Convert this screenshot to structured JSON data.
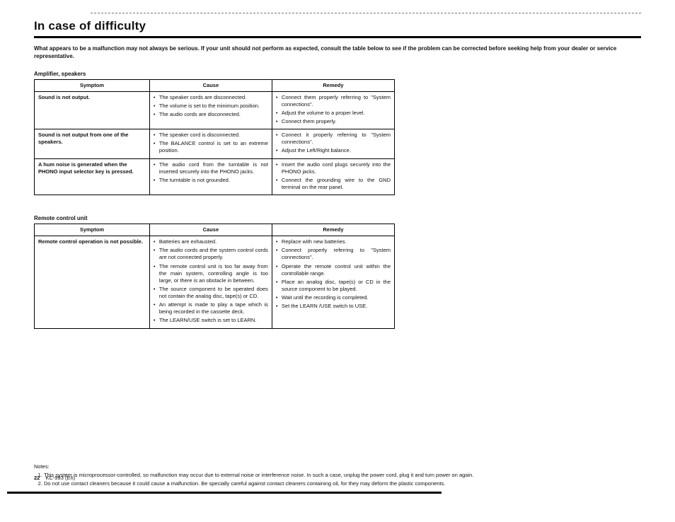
{
  "title": "In case of difficulty",
  "intro": "What appears to be a malfunction may not always be serious. If your unit should not perform as expected, consult the table below to see if the problem can be corrected before seeking help from your dealer or service representative.",
  "section1": {
    "label": "Amplifier, speakers",
    "headers": [
      "Symptom",
      "Cause",
      "Remedy"
    ],
    "rows": [
      {
        "symptom": "Sound is not output.",
        "causes": [
          "The speaker cords are disconnected.",
          "The volume is set to the minimum position.",
          "The audio cords are disconnected."
        ],
        "remedies": [
          "Connect them properly referring to \"System connections\".",
          "Adjust the volume to a proper level.",
          "Connect them properly."
        ]
      },
      {
        "symptom": "Sound is not output from one of the speakers.",
        "causes": [
          "The speaker cord is disconnected.",
          "The BALANCE control is set to an extreme position."
        ],
        "remedies": [
          "Connect it properly referring to \"System connections\".",
          "Adjust the Left/Right balance."
        ]
      },
      {
        "symptom": "A hum noise is generated when the PHONO input selector key is pressed.",
        "causes": [
          "The audio cord from the turntable is not inserted securely into the PHONO jacks.",
          "The turntable is not grounded."
        ],
        "remedies": [
          "Insert the audio cord plugs securely into the PHONO jacks.",
          "Connect the grounding wire to the GND terminal on the rear panel."
        ]
      }
    ]
  },
  "section2": {
    "label": "Remote control unit",
    "headers": [
      "Symptom",
      "Cause",
      "Remedy"
    ],
    "rows": [
      {
        "symptom": "Remote control operation is not possible.",
        "causes": [
          "Batteries are exhausted.",
          "The audio cords and the system control cords are not connected properly.",
          "The remote control unit is too far away from the main system, controlling angle is too large, or there is an obstacle in between.",
          "The source component to be operated does not contain the analog disc, tape(s) or CD.",
          "An attempt is made to play a tape which is being recorded in the cassette deck.",
          "The LEARN/USE switch is set to LEARN."
        ],
        "remedies": [
          "Replace with new batteries.",
          "Connect properly referring to \"System connections\".",
          "Operate the remote control unit within the controllable range.",
          "Place an analog disc, tape(s) or CD in the source component to be played.",
          "Wait until the recording is completed.",
          "Set the LEARN /USE switch to USE."
        ]
      }
    ]
  },
  "notes": {
    "heading": "Notes:",
    "items": [
      "This system is microprocessor-controlled, so malfunction may occur due to external noise or interference noise. In such a case, unplug the power cord, plug it and turn power on again.",
      "Do not use contact cleaners because it could cause a malfunction. Be specially careful against contact cleaners containing oil, for they may deform the plastic components."
    ]
  },
  "footer": {
    "page": "22",
    "model": "KC-993 (En)"
  }
}
